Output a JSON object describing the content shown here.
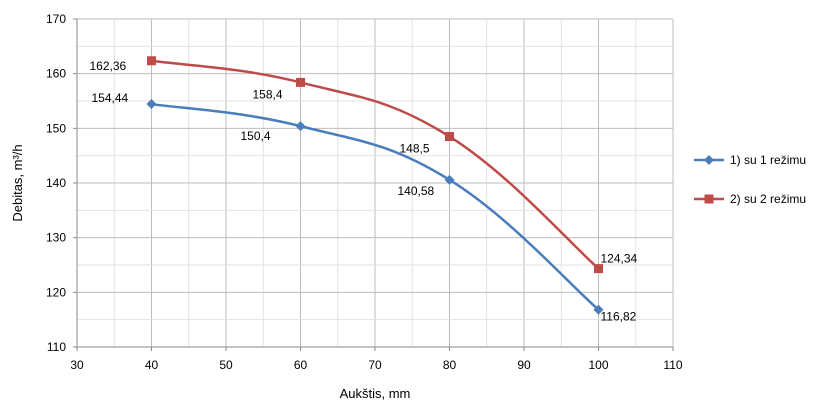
{
  "chart_data": {
    "type": "line",
    "title": "",
    "xlabel": "Aukštis, mm",
    "ylabel": "Debitas, m³/h",
    "xlim": [
      30,
      110
    ],
    "ylim": [
      110,
      170
    ],
    "x_ticks": [
      "30",
      "40",
      "50",
      "60",
      "70",
      "80",
      "90",
      "100",
      "110"
    ],
    "y_ticks": [
      "110",
      "120",
      "130",
      "140",
      "150",
      "160",
      "170"
    ],
    "grid": true,
    "legend_position": "right",
    "series": [
      {
        "name": "1) su 1 režimu",
        "color": "#4a7ebb",
        "marker": "diamond",
        "x": [
          40,
          60,
          80,
          100
        ],
        "y": [
          154.44,
          150.4,
          140.58,
          116.82
        ],
        "labels": [
          "154,44",
          "150,4",
          "140,58",
          "116,82"
        ]
      },
      {
        "name": "2) su 2 režimu",
        "color": "#be4b48",
        "marker": "square",
        "x": [
          40,
          60,
          80,
          100
        ],
        "y": [
          162.36,
          158.4,
          148.5,
          124.34
        ],
        "labels": [
          "162,36",
          "158,4",
          "148,5",
          "124,34"
        ]
      }
    ]
  }
}
